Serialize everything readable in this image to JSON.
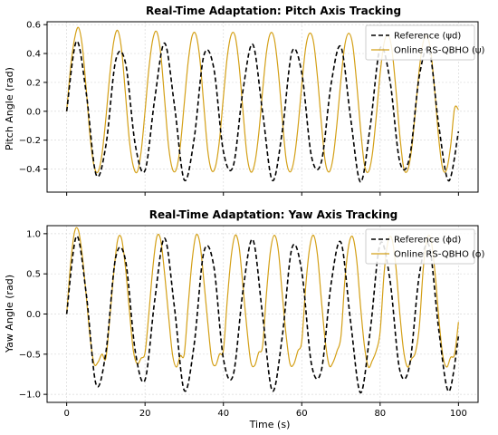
{
  "colors": {
    "reference": "#000000",
    "online": "#d4a017",
    "grid": "#d9d9d9",
    "frame": "#000000"
  },
  "chart_data": [
    {
      "type": "line",
      "title": "Real-Time Adaptation: Pitch Axis Tracking",
      "xlabel": "",
      "ylabel": "Pitch Angle (rad)",
      "xlim": [
        -5,
        105
      ],
      "ylim": [
        -0.56,
        0.62
      ],
      "xticks": [
        0,
        20,
        40,
        60,
        80,
        100
      ],
      "xtick_labels": [
        "",
        "",
        "",
        "",
        "",
        ""
      ],
      "yticks": [
        -0.4,
        -0.2,
        0.0,
        0.2,
        0.4,
        0.6
      ],
      "ytick_labels": [
        "−0.4",
        "−0.2",
        "0.0",
        "0.2",
        "0.4",
        "0.6"
      ],
      "grid": true,
      "legend_position": "upper-right",
      "series": [
        {
          "name": "Reference (ψd)",
          "style": "dashed",
          "color": "#000000",
          "x": [
            0,
            2.5,
            5,
            7.5,
            10,
            12.5,
            15,
            17.5,
            20,
            22.5,
            25,
            27.5,
            30,
            32.5,
            35,
            37.5,
            40,
            42.5,
            45,
            47.5,
            50,
            52.5,
            55,
            57.5,
            60,
            62.5,
            65,
            67.5,
            70,
            72.5,
            75,
            77.5,
            80,
            82.5,
            85,
            87.5,
            90,
            92.5,
            95,
            97.5,
            100
          ],
          "y": [
            0.0,
            0.484,
            0.124,
            -0.438,
            -0.239,
            0.351,
            0.336,
            -0.231,
            -0.41,
            0.091,
            0.472,
            0.042,
            -0.475,
            -0.197,
            0.385,
            0.305,
            -0.279,
            -0.38,
            0.145,
            0.463,
            -0.006,
            -0.479,
            -0.145,
            0.411,
            0.265,
            -0.315,
            -0.351,
            0.19,
            0.446,
            -0.054,
            -0.49,
            -0.098,
            0.437,
            0.214,
            -0.347,
            -0.322,
            0.243,
            0.425,
            -0.105,
            -0.482,
            -0.14
          ]
        },
        {
          "name": "Online RS-QBHO (ψ)",
          "style": "solid",
          "color": "#d4a017",
          "x": [
            0,
            1,
            2,
            3,
            4,
            5,
            6,
            7,
            8,
            9,
            10,
            11,
            12,
            13,
            14,
            15,
            16,
            17,
            18,
            19,
            20,
            21,
            22,
            23,
            24,
            25,
            26,
            27,
            28,
            29,
            30,
            31,
            32,
            33,
            34,
            35,
            36,
            37,
            38,
            39,
            40,
            41,
            42,
            43,
            44,
            45,
            46,
            47,
            48,
            49,
            50,
            51,
            52,
            53,
            54,
            55,
            56,
            57,
            58,
            59,
            60,
            61,
            62,
            63,
            64,
            65,
            66,
            67,
            68,
            69,
            70,
            71,
            72,
            73,
            74,
            75,
            76,
            77,
            78,
            79,
            80,
            81,
            82,
            83,
            84,
            85,
            86,
            87,
            88,
            89,
            90,
            91,
            92,
            93,
            94,
            95,
            96,
            97,
            98,
            99,
            100
          ],
          "y": [
            0.0,
            0.3,
            0.5,
            0.58,
            0.45,
            0.15,
            -0.18,
            -0.38,
            -0.42,
            -0.3,
            -0.05,
            0.25,
            0.48,
            0.56,
            0.43,
            0.12,
            -0.2,
            -0.38,
            -0.42,
            -0.28,
            0.0,
            0.3,
            0.5,
            0.55,
            0.4,
            0.08,
            -0.24,
            -0.4,
            -0.4,
            -0.24,
            0.05,
            0.34,
            0.52,
            0.53,
            0.36,
            0.04,
            -0.27,
            -0.41,
            -0.38,
            -0.2,
            0.1,
            0.38,
            0.53,
            0.52,
            0.32,
            0.0,
            -0.3,
            -0.42,
            -0.36,
            -0.16,
            0.14,
            0.41,
            0.54,
            0.5,
            0.28,
            -0.04,
            -0.33,
            -0.42,
            -0.34,
            -0.12,
            0.18,
            0.44,
            0.54,
            0.48,
            0.24,
            -0.08,
            -0.35,
            -0.42,
            -0.32,
            -0.08,
            0.22,
            0.46,
            0.54,
            0.46,
            0.2,
            -0.12,
            -0.37,
            -0.42,
            -0.3,
            -0.04,
            0.26,
            0.47,
            0.53,
            0.43,
            0.16,
            -0.16,
            -0.39,
            -0.41,
            -0.27,
            0.0,
            0.29,
            0.48,
            0.52,
            0.4,
            0.12,
            -0.2,
            -0.4,
            -0.4,
            -0.24,
            0.02,
            0.01
          ]
        }
      ]
    },
    {
      "type": "line",
      "title": "Real-Time Adaptation: Yaw Axis Tracking",
      "xlabel": "Time (s)",
      "ylabel": "Yaw Angle (rad)",
      "xlim": [
        -5,
        105
      ],
      "ylim": [
        -1.1,
        1.1
      ],
      "xticks": [
        0,
        20,
        40,
        60,
        80,
        100
      ],
      "xtick_labels": [
        "0",
        "20",
        "40",
        "60",
        "80",
        "100"
      ],
      "yticks": [
        -1.0,
        -0.5,
        0.0,
        0.5,
        1.0
      ],
      "ytick_labels": [
        "−1.0",
        "−0.5",
        "0.0",
        "0.5",
        "1.0"
      ],
      "grid": true,
      "legend_position": "upper-right",
      "series": [
        {
          "name": "Reference (ϕd)",
          "style": "dashed",
          "color": "#000000",
          "x": [
            0,
            2.5,
            5,
            7.5,
            10,
            12.5,
            15,
            17.5,
            20,
            22.5,
            25,
            27.5,
            30,
            32.5,
            35,
            37.5,
            40,
            42.5,
            45,
            47.5,
            50,
            52.5,
            55,
            57.5,
            60,
            62.5,
            65,
            67.5,
            70,
            72.5,
            75,
            77.5,
            80,
            82.5,
            85,
            87.5,
            90,
            92.5,
            95,
            97.5,
            100
          ],
          "y": [
            0.0,
            0.968,
            0.248,
            -0.876,
            -0.478,
            0.702,
            0.672,
            -0.462,
            -0.82,
            0.182,
            0.944,
            0.084,
            -0.95,
            -0.394,
            0.77,
            0.61,
            -0.558,
            -0.76,
            0.29,
            0.926,
            -0.012,
            -0.958,
            -0.29,
            0.822,
            0.53,
            -0.63,
            -0.702,
            0.38,
            0.892,
            -0.108,
            -0.98,
            -0.196,
            0.874,
            0.428,
            -0.694,
            -0.644,
            0.486,
            0.85,
            -0.21,
            -0.964,
            -0.28
          ]
        },
        {
          "name": "Online RS-QBHO (ϕ)",
          "style": "solid",
          "color": "#d4a017",
          "x": [
            0,
            1,
            2,
            3,
            4,
            5,
            6,
            7,
            8,
            9,
            10,
            11,
            12,
            13,
            14,
            15,
            16,
            17,
            18,
            19,
            20,
            21,
            22,
            23,
            24,
            25,
            26,
            27,
            28,
            29,
            30,
            31,
            32,
            33,
            34,
            35,
            36,
            37,
            38,
            39,
            40,
            41,
            42,
            43,
            44,
            45,
            46,
            47,
            48,
            49,
            50,
            51,
            52,
            53,
            54,
            55,
            56,
            57,
            58,
            59,
            60,
            61,
            62,
            63,
            64,
            65,
            66,
            67,
            68,
            69,
            70,
            71,
            72,
            73,
            74,
            75,
            76,
            77,
            78,
            79,
            80,
            81,
            82,
            83,
            84,
            85,
            86,
            87,
            88,
            89,
            90,
            91,
            92,
            93,
            94,
            95,
            96,
            97,
            98,
            99,
            100
          ],
          "y": [
            0.0,
            0.62,
            1.02,
            1.04,
            0.72,
            0.22,
            -0.3,
            -0.62,
            -0.6,
            -0.5,
            -0.55,
            -0.05,
            0.5,
            0.92,
            0.94,
            0.58,
            0.05,
            -0.45,
            -0.62,
            -0.55,
            -0.48,
            0.02,
            0.58,
            0.96,
            0.92,
            0.5,
            -0.02,
            -0.5,
            -0.66,
            -0.52,
            -0.5,
            0.1,
            0.66,
            0.98,
            0.88,
            0.42,
            -0.1,
            -0.56,
            -0.64,
            -0.5,
            -0.45,
            0.18,
            0.72,
            0.98,
            0.84,
            0.34,
            -0.18,
            -0.6,
            -0.64,
            -0.48,
            -0.4,
            0.26,
            0.78,
            0.98,
            0.8,
            0.26,
            -0.26,
            -0.62,
            -0.62,
            -0.46,
            -0.34,
            0.34,
            0.82,
            0.98,
            0.74,
            0.18,
            -0.34,
            -0.64,
            -0.6,
            -0.46,
            -0.28,
            0.42,
            0.86,
            0.96,
            0.68,
            0.1,
            -0.4,
            -0.66,
            -0.58,
            -0.46,
            -0.22,
            0.5,
            0.9,
            0.94,
            0.6,
            0.02,
            -0.46,
            -0.66,
            -0.56,
            -0.48,
            -0.16,
            0.56,
            0.94,
            0.92,
            0.52,
            -0.06,
            -0.52,
            -0.66,
            -0.54,
            -0.5,
            -0.1
          ]
        }
      ]
    }
  ]
}
